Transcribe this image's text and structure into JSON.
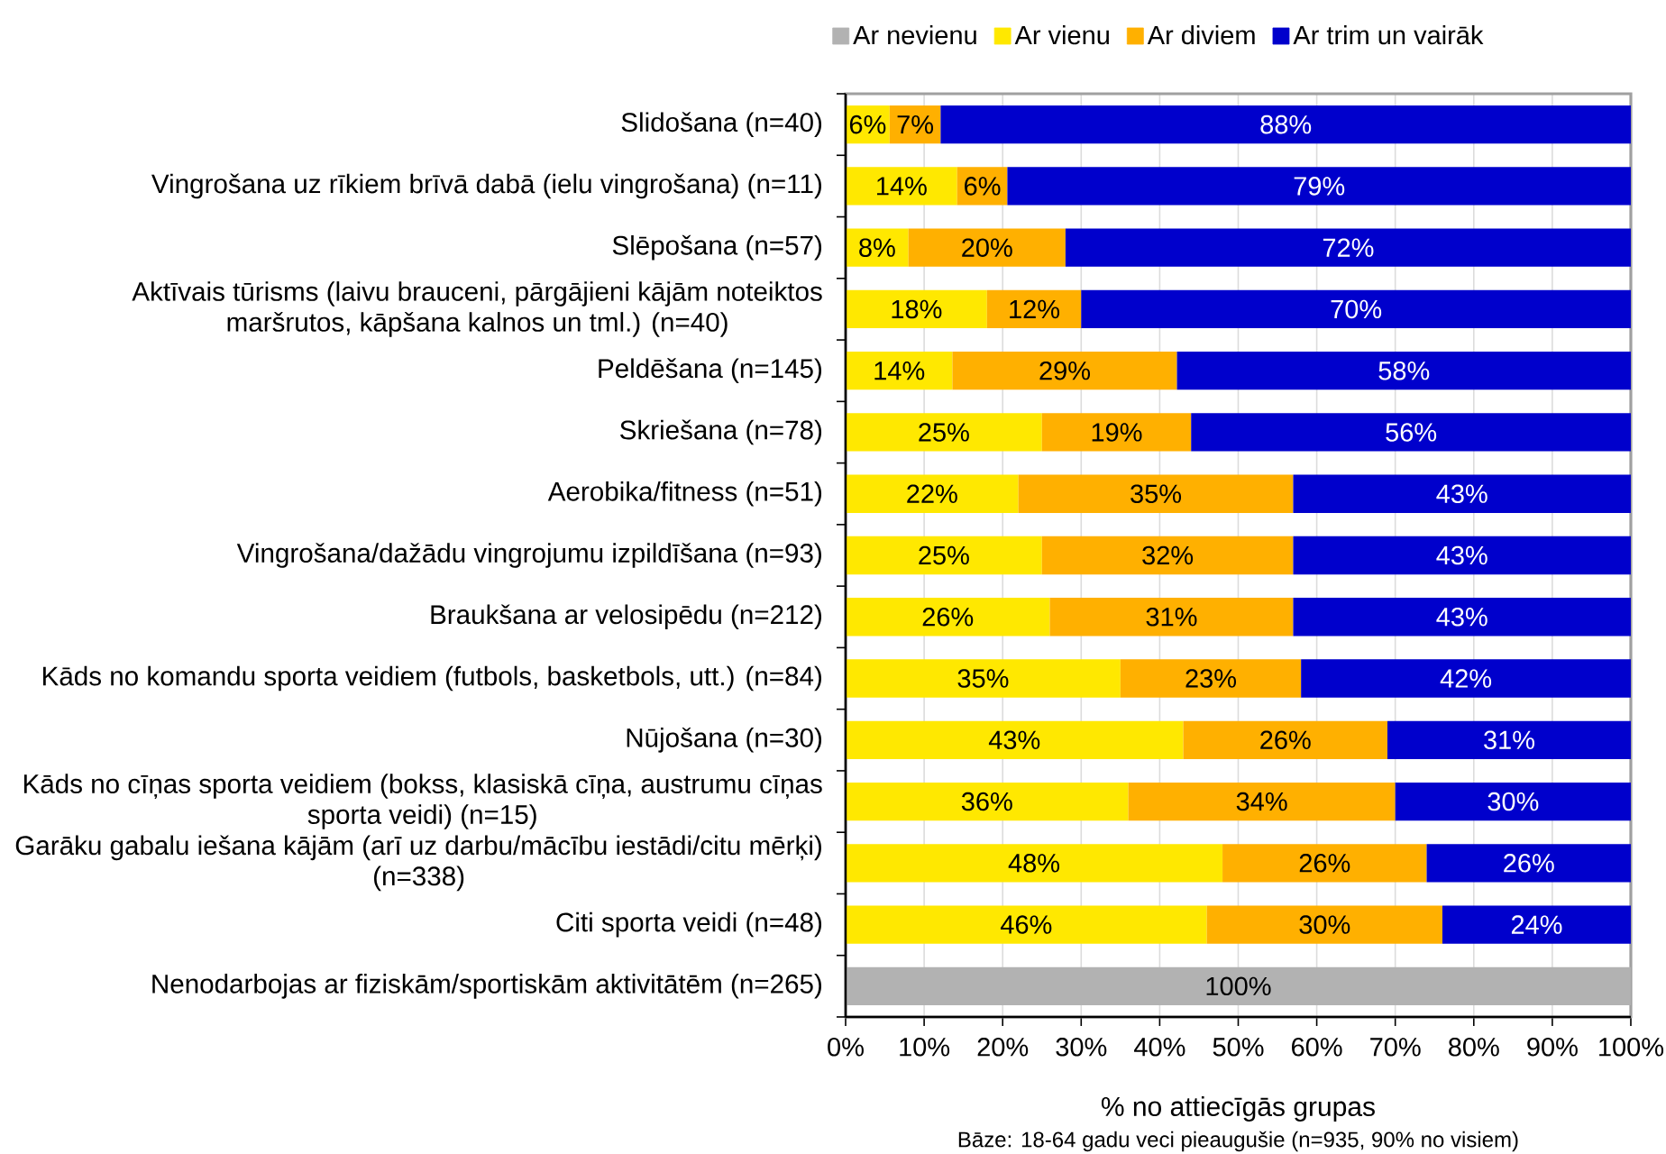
{
  "chart_data": {
    "type": "bar",
    "orientation": "horizontal",
    "stacked": true,
    "categories": [
      "Slidošana (n=40)",
      "Vingrošana uz rīkiem brīvā dabā (ielu vingrošana) (n=11)",
      "Slēpošana (n=57)",
      "Aktīvais tūrisms (laivu brauceni, pārgājieni kājām noteiktos maršrutos, kāpšana kalnos un tml.) (n=40)",
      "Peldēšana (n=145)",
      "Skriešana (n=78)",
      "Aerobika/fitness (n=51)",
      "Vingrošana/dažādu vingrojumu izpildīšana (n=93)",
      "Braukšana ar velosipēdu (n=212)",
      "Kāds no komandu sporta veidiem (futbols, basketbols, utt.) (n=84)",
      "Nūjošana (n=30)",
      "Kāds no cīņas sporta veidiem (bokss, klasiskā cīņa, austrumu cīņas sporta veidi) (n=15)",
      "Garāku gabalu iešana kājām (arī uz darbu/mācību iestādi/citu mērķi) (n=338)",
      "Citi sporta veidi (n=48)",
      "Nenodarbojas ar fiziskām/sportiskām aktivitātēm (n=265)"
    ],
    "series": [
      {
        "name": "Ar nevienu",
        "color": "#b2b2b2",
        "values": [
          null,
          null,
          null,
          null,
          null,
          null,
          null,
          null,
          null,
          null,
          null,
          null,
          null,
          null,
          100
        ],
        "value_labels": [
          null,
          null,
          null,
          null,
          null,
          null,
          null,
          null,
          null,
          null,
          null,
          null,
          null,
          null,
          "100%"
        ]
      },
      {
        "name": "Ar vienu",
        "color": "#ffe800",
        "values": [
          5.6,
          14.2,
          8,
          18,
          13.6,
          25,
          22,
          25,
          26,
          35,
          43,
          36,
          48,
          46,
          null
        ],
        "value_labels": [
          "6%",
          "14%",
          "8%",
          "18%",
          "14%",
          "25%",
          "22%",
          "25%",
          "26%",
          "35%",
          "43%",
          "36%",
          "48%",
          "46%",
          null
        ]
      },
      {
        "name": "Ar diviem",
        "color": "#ffb000",
        "values": [
          6.5,
          6.4,
          20,
          12,
          28.6,
          19,
          35,
          32,
          31,
          23,
          26,
          34,
          26,
          30,
          null
        ],
        "value_labels": [
          "7%",
          "6%",
          "20%",
          "12%",
          "29%",
          "19%",
          "35%",
          "32%",
          "31%",
          "23%",
          "26%",
          "34%",
          "26%",
          "30%",
          null
        ]
      },
      {
        "name": "Ar trim un vairāk",
        "color": "#0000cc",
        "values": [
          87.9,
          79.4,
          72,
          70,
          57.8,
          56,
          43,
          43,
          43,
          42,
          31,
          30,
          26,
          24,
          null
        ],
        "value_labels": [
          "88%",
          "79%",
          "72%",
          "70%",
          "58%",
          "56%",
          "43%",
          "43%",
          "43%",
          "42%",
          "31%",
          "30%",
          "26%",
          "24%",
          null
        ]
      }
    ],
    "xlim": [
      0,
      100
    ],
    "xticks": [
      {
        "value": 0,
        "label": "0%"
      },
      {
        "value": 10,
        "label": "10%"
      },
      {
        "value": 20,
        "label": "20%"
      },
      {
        "value": 30,
        "label": "30%"
      },
      {
        "value": 40,
        "label": "40%"
      },
      {
        "value": 50,
        "label": "50%"
      },
      {
        "value": 60,
        "label": "60%"
      },
      {
        "value": 70,
        "label": "70%"
      },
      {
        "value": 80,
        "label": "80%"
      },
      {
        "value": 90,
        "label": "90%"
      },
      {
        "value": 100,
        "label": "100%"
      }
    ],
    "xlabel": "% no attiecīgās grupas",
    "annotations": [
      "Bāze: 18-64 gadu veci pieaugušie (n=935, 90% no visiem)"
    ],
    "grid": "x",
    "legend": "top"
  }
}
